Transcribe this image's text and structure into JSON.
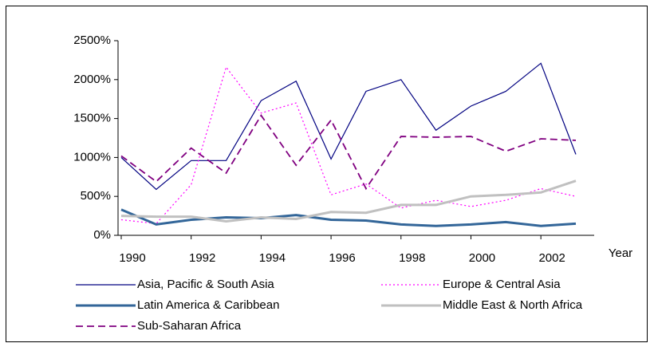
{
  "chart_data": {
    "type": "line",
    "x_label": "Year",
    "x": [
      1990,
      1991,
      1992,
      1993,
      1994,
      1995,
      1996,
      1997,
      1998,
      1999,
      2000,
      2001,
      2002,
      2003
    ],
    "xlim": [
      1990,
      2003
    ],
    "xticks": [
      1990,
      1992,
      1994,
      1996,
      1998,
      2000,
      2002
    ],
    "ylim": [
      0,
      2500
    ],
    "yticks": [
      {
        "value": 0,
        "label": "0%"
      },
      {
        "value": 500,
        "label": "500%"
      },
      {
        "value": 1000,
        "label": "1000%"
      },
      {
        "value": 1500,
        "label": "1500%"
      },
      {
        "value": 2000,
        "label": "2000%"
      },
      {
        "value": 2500,
        "label": "2500%"
      }
    ],
    "grid": false,
    "legend": "bottom",
    "series": [
      {
        "name": "Asia, Pacific & South Asia",
        "color": "#000080",
        "dash": "solid",
        "weight": "thin",
        "values": [
          1000,
          590,
          960,
          960,
          1730,
          1980,
          980,
          1850,
          2000,
          1350,
          1660,
          1850,
          2210,
          1040
        ]
      },
      {
        "name": "Europe & Central Asia",
        "color": "#ff00ff",
        "dash": "dotted",
        "weight": "thin",
        "values": [
          200,
          150,
          650,
          2160,
          1570,
          1700,
          520,
          660,
          350,
          450,
          370,
          450,
          600,
          500
        ]
      },
      {
        "name": "Latin America & Caribbean",
        "color": "#336699",
        "dash": "solid",
        "weight": "thick",
        "values": [
          330,
          140,
          200,
          230,
          220,
          260,
          200,
          190,
          140,
          120,
          140,
          170,
          120,
          150
        ]
      },
      {
        "name": "Middle East & North Africa",
        "color": "#c0c0c0",
        "dash": "solid",
        "weight": "thick",
        "values": [
          250,
          240,
          240,
          180,
          230,
          210,
          300,
          290,
          390,
          390,
          500,
          520,
          550,
          700
        ]
      },
      {
        "name": "Sub-Saharan Africa",
        "color": "#800080",
        "dash": "dashed",
        "weight": "medium",
        "values": [
          1020,
          690,
          1120,
          800,
          1540,
          900,
          1480,
          600,
          1270,
          1260,
          1270,
          1080,
          1240,
          1220
        ]
      }
    ]
  }
}
